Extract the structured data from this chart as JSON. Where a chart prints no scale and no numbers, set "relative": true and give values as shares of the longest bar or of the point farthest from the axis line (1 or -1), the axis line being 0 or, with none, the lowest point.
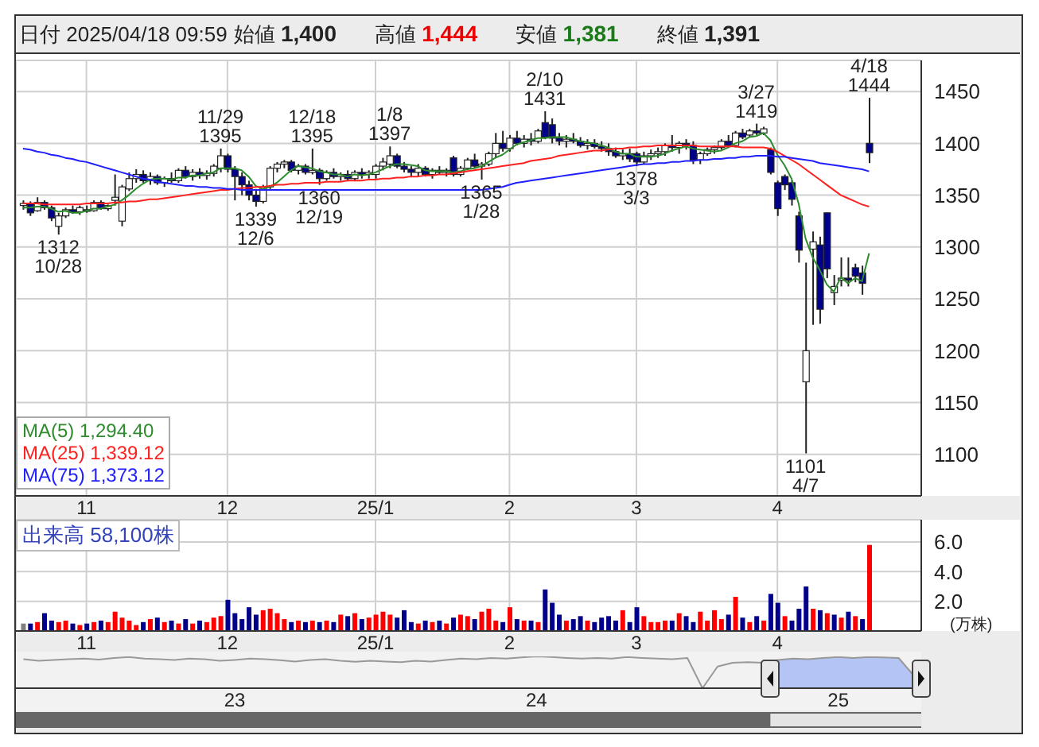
{
  "chart_data": [
    {
      "type": "candlestick",
      "title": "日付 2025/04/18 09:59",
      "grid": true,
      "colors": [
        "#ffffff",
        "#00008b",
        "#ffffff",
        "#00008b",
        "#00008b",
        "#ffffff",
        "#ffffff",
        "#00008b",
        "#ffffff",
        "#00008b",
        "#ffffff",
        "#00008b",
        "#ffffff",
        "#ffffff",
        "#ffffff",
        "#ffffff",
        "#ffffff",
        "#00008b",
        "#ffffff",
        "#00008b",
        "#ffffff",
        "#00008b",
        "#ffffff",
        "#00008b",
        "#ffffff",
        "#00008b",
        "#ffffff",
        "#ffffff",
        "#ffffff",
        "#00008b",
        "#00008b",
        "#00008b",
        "#00008b",
        "#00008b",
        "#ffffff",
        "#ffffff",
        "#ffffff",
        "#ffffff",
        "#00008b",
        "#ffffff",
        "#00008b",
        "#ffffff",
        "#00008b",
        "#ffffff",
        "#00008b",
        "#ffffff",
        "#00008b",
        "#ffffff",
        "#00008b",
        "#ffffff",
        "#ffffff",
        "#ffffff",
        "#ffffff",
        "#00008b",
        "#00008b",
        "#00008b",
        "#ffffff",
        "#00008b",
        "#ffffff",
        "#00008b",
        "#ffffff",
        "#00008b",
        "#ffffff",
        "#ffffff",
        "#00008b",
        "#ffffff",
        "#ffffff",
        "#ffffff",
        "#00008b",
        "#ffffff",
        "#00008b",
        "#ffffff",
        "#00008b",
        "#ffffff",
        "#00008b",
        "#00008b",
        "#00008b",
        "#ffffff",
        "#00008b",
        "#00008b",
        "#ffffff",
        "#00008b",
        "#00008b",
        "#00008b",
        "#00008b",
        "#ffffff",
        "#00008b",
        "#00008b",
        "#ffffff",
        "#ffffff",
        "#ffffff",
        "#ffffff",
        "#00008b",
        "#ffffff",
        "#00008b",
        "#00008b",
        "#ffffff",
        "#ffffff",
        "#ffffff",
        "#ffffff",
        "#00008b",
        "#ffffff",
        "#00008b",
        "#ffffff",
        "#00008b",
        "#ffffff",
        "#00008b",
        "#00008b",
        "#00008b",
        "#00008b",
        "#00008b",
        "#ffffff",
        "#ffffff",
        "#00008b",
        "#00008b",
        "#ffffff",
        "#ffffff",
        "#00008b",
        "#00008b",
        "#00008b",
        "#00008b"
      ],
      "legend": "bottom left",
      "ylim": [
        1060,
        1480
      ],
      "yticks": [
        1100,
        1150,
        1200,
        1250,
        1300,
        1350,
        1400,
        1450
      ],
      "annotations": [
        "始値 1,400",
        "高値 1,444",
        "安値 1,381",
        "終値 1,391",
        {
          "text": "1312\n10/28",
          "y": 1312
        },
        {
          "text": "11/29\n1395",
          "y": 1395
        },
        {
          "text": "1339\n12/6",
          "y": 1339
        },
        {
          "text": "12/18\n1395",
          "y": 1395
        },
        {
          "text": "1360\n12/19",
          "y": 1360
        },
        {
          "text": "1/8\n1397",
          "y": 1397
        },
        {
          "text": "1365\n1/28",
          "y": 1365
        },
        {
          "text": "2/10\n1431",
          "y": 1431
        },
        {
          "text": "1378\n3/3",
          "y": 1378
        },
        {
          "text": "3/27\n1419",
          "y": 1419
        },
        {
          "text": "1101\n4/7",
          "y": 1101
        },
        {
          "text": "4/18\n1444",
          "y": 1444
        }
      ],
      "categories": [
        null,
        null,
        null,
        null,
        null,
        null,
        null,
        null,
        null,
        "11",
        null,
        null,
        null,
        null,
        null,
        null,
        null,
        null,
        null,
        null,
        null,
        null,
        null,
        null,
        null,
        null,
        null,
        null,
        null,
        "12",
        null,
        null,
        null,
        null,
        null,
        null,
        null,
        null,
        null,
        null,
        null,
        null,
        null,
        null,
        null,
        null,
        null,
        null,
        null,
        null,
        "25/1",
        null,
        null,
        null,
        null,
        null,
        null,
        null,
        null,
        null,
        null,
        null,
        null,
        null,
        null,
        null,
        null,
        null,
        null,
        "2",
        null,
        null,
        null,
        null,
        null,
        null,
        null,
        null,
        null,
        null,
        null,
        null,
        null,
        null,
        null,
        null,
        null,
        "3",
        null,
        null,
        null,
        null,
        null,
        null,
        null,
        null,
        null,
        null,
        null,
        null,
        null,
        null,
        null,
        null,
        null,
        null,
        null,
        "4",
        null,
        null,
        null,
        null,
        null,
        null,
        null,
        null,
        null,
        null,
        null,
        null,
        null
      ],
      "ohlc": [
        [
          1340,
          1345,
          1336,
          1342
        ],
        [
          1342,
          1344,
          1330,
          1333
        ],
        [
          1335,
          1348,
          1334,
          1343
        ],
        [
          1343,
          1345,
          1336,
          1338
        ],
        [
          1338,
          1340,
          1325,
          1328
        ],
        [
          1320,
          1333,
          1312,
          1330
        ],
        [
          1330,
          1338,
          1328,
          1336
        ],
        [
          1336,
          1340,
          1332,
          1334
        ],
        [
          1334,
          1340,
          1331,
          1338
        ],
        [
          1336,
          1340,
          1333,
          1335
        ],
        [
          1335,
          1345,
          1334,
          1343
        ],
        [
          1343,
          1345,
          1336,
          1337
        ],
        [
          1337,
          1341,
          1335,
          1340
        ],
        [
          1345,
          1370,
          1340,
          1348
        ],
        [
          1325,
          1360,
          1320,
          1358
        ],
        [
          1356,
          1372,
          1354,
          1366
        ],
        [
          1366,
          1375,
          1362,
          1370
        ],
        [
          1370,
          1374,
          1362,
          1364
        ],
        [
          1364,
          1372,
          1360,
          1368
        ],
        [
          1368,
          1370,
          1360,
          1362
        ],
        [
          1362,
          1368,
          1358,
          1366
        ],
        [
          1366,
          1372,
          1362,
          1364
        ],
        [
          1364,
          1376,
          1362,
          1374
        ],
        [
          1374,
          1378,
          1366,
          1368
        ],
        [
          1368,
          1375,
          1364,
          1372
        ],
        [
          1372,
          1376,
          1366,
          1369
        ],
        [
          1369,
          1374,
          1365,
          1371
        ],
        [
          1371,
          1380,
          1368,
          1378
        ],
        [
          1376,
          1395,
          1372,
          1388
        ],
        [
          1388,
          1390,
          1372,
          1375
        ],
        [
          1375,
          1378,
          1345,
          1368
        ],
        [
          1368,
          1372,
          1350,
          1360
        ],
        [
          1360,
          1364,
          1345,
          1350
        ],
        [
          1350,
          1356,
          1339,
          1344
        ],
        [
          1344,
          1360,
          1342,
          1358
        ],
        [
          1358,
          1378,
          1356,
          1376
        ],
        [
          1376,
          1382,
          1372,
          1380
        ],
        [
          1380,
          1384,
          1376,
          1382
        ],
        [
          1382,
          1384,
          1372,
          1374
        ],
        [
          1374,
          1380,
          1370,
          1378
        ],
        [
          1378,
          1380,
          1370,
          1372
        ],
        [
          1372,
          1395,
          1370,
          1374
        ],
        [
          1374,
          1376,
          1360,
          1366
        ],
        [
          1366,
          1374,
          1364,
          1372
        ],
        [
          1372,
          1376,
          1366,
          1368
        ],
        [
          1368,
          1372,
          1364,
          1370
        ],
        [
          1370,
          1374,
          1364,
          1366
        ],
        [
          1366,
          1374,
          1364,
          1372
        ],
        [
          1372,
          1376,
          1366,
          1370
        ],
        [
          1370,
          1374,
          1366,
          1372
        ],
        [
          1370,
          1380,
          1366,
          1378
        ],
        [
          1378,
          1386,
          1374,
          1382
        ],
        [
          1380,
          1397,
          1376,
          1388
        ],
        [
          1388,
          1390,
          1376,
          1378
        ],
        [
          1378,
          1382,
          1372,
          1375
        ],
        [
          1375,
          1378,
          1368,
          1372
        ],
        [
          1372,
          1380,
          1368,
          1376
        ],
        [
          1376,
          1378,
          1368,
          1370
        ],
        [
          1370,
          1376,
          1366,
          1374
        ],
        [
          1374,
          1378,
          1370,
          1372
        ],
        [
          1372,
          1376,
          1368,
          1374
        ],
        [
          1386,
          1388,
          1368,
          1370
        ],
        [
          1370,
          1378,
          1368,
          1376
        ],
        [
          1376,
          1386,
          1374,
          1384
        ],
        [
          1384,
          1390,
          1376,
          1378
        ],
        [
          1378,
          1382,
          1365,
          1380
        ],
        [
          1380,
          1392,
          1378,
          1390
        ],
        [
          1390,
          1410,
          1386,
          1400
        ],
        [
          1400,
          1412,
          1392,
          1395
        ],
        [
          1395,
          1408,
          1392,
          1405
        ],
        [
          1405,
          1412,
          1398,
          1400
        ],
        [
          1400,
          1408,
          1396,
          1404
        ],
        [
          1404,
          1410,
          1398,
          1402
        ],
        [
          1402,
          1414,
          1400,
          1412
        ],
        [
          1420,
          1431,
          1404,
          1406
        ],
        [
          1418,
          1424,
          1400,
          1405
        ],
        [
          1405,
          1410,
          1398,
          1402
        ],
        [
          1402,
          1408,
          1396,
          1404
        ],
        [
          1404,
          1410,
          1400,
          1402
        ],
        [
          1402,
          1406,
          1396,
          1398
        ],
        [
          1398,
          1404,
          1394,
          1400
        ],
        [
          1400,
          1404,
          1395,
          1397
        ],
        [
          1397,
          1402,
          1392,
          1395
        ],
        [
          1395,
          1400,
          1388,
          1392
        ],
        [
          1392,
          1396,
          1386,
          1388
        ],
        [
          1388,
          1394,
          1384,
          1390
        ],
        [
          1390,
          1395,
          1382,
          1385
        ],
        [
          1390,
          1392,
          1378,
          1382
        ],
        [
          1382,
          1392,
          1380,
          1388
        ],
        [
          1388,
          1394,
          1384,
          1390
        ],
        [
          1390,
          1396,
          1386,
          1392
        ],
        [
          1392,
          1400,
          1388,
          1398
        ],
        [
          1398,
          1408,
          1392,
          1396
        ],
        [
          1396,
          1402,
          1390,
          1400
        ],
        [
          1400,
          1404,
          1394,
          1398
        ],
        [
          1398,
          1402,
          1380,
          1384
        ],
        [
          1384,
          1392,
          1380,
          1390
        ],
        [
          1390,
          1396,
          1388,
          1394
        ],
        [
          1394,
          1398,
          1390,
          1396
        ],
        [
          1396,
          1404,
          1394,
          1402
        ],
        [
          1402,
          1408,
          1396,
          1398
        ],
        [
          1398,
          1412,
          1396,
          1410
        ],
        [
          1410,
          1414,
          1404,
          1406
        ],
        [
          1408,
          1414,
          1406,
          1412
        ],
        [
          1412,
          1419,
          1408,
          1410
        ],
        [
          1410,
          1416,
          1408,
          1414
        ],
        [
          1394,
          1396,
          1370,
          1372
        ],
        [
          1362,
          1364,
          1330,
          1337
        ],
        [
          1368,
          1370,
          1355,
          1360
        ],
        [
          1362,
          1364,
          1340,
          1346
        ],
        [
          1330,
          1334,
          1285,
          1297
        ],
        [
          1170,
          1285,
          1101,
          1200
        ],
        [
          1298,
          1315,
          1225,
          1305
        ],
        [
          1302,
          1310,
          1226,
          1240
        ],
        [
          1333,
          1333,
          1270,
          1279
        ],
        [
          1256,
          1273,
          1244,
          1262
        ],
        [
          1268,
          1290,
          1262,
          1270
        ],
        [
          1270,
          1290,
          1262,
          1268
        ],
        [
          1280,
          1284,
          1266,
          1272
        ],
        [
          1275,
          1282,
          1254,
          1265
        ],
        [
          1400,
          1444,
          1381,
          1391
        ]
      ],
      "series": [
        {
          "name": "MA(5) 1,294.40",
          "type": "line",
          "color": "#2e8b2e",
          "values": [
            1338,
            1338,
            1339,
            1339,
            1337,
            1334,
            1335,
            1333,
            1333,
            1335,
            1337,
            1337,
            1339,
            1341,
            1345,
            1350,
            1356,
            1361,
            1365,
            1366,
            1366,
            1365,
            1367,
            1367,
            1369,
            1369,
            1371,
            1372,
            1376,
            1376,
            1376,
            1374,
            1368,
            1359,
            1356,
            1358,
            1362,
            1368,
            1374,
            1378,
            1377,
            1376,
            1373,
            1372,
            1370,
            1370,
            1368,
            1370,
            1369,
            1370,
            1372,
            1375,
            1378,
            1380,
            1380,
            1379,
            1378,
            1374,
            1373,
            1373,
            1373,
            1372,
            1373,
            1375,
            1376,
            1378,
            1382,
            1386,
            1389,
            1394,
            1399,
            1401,
            1403,
            1405,
            1405,
            1406,
            1406,
            1406,
            1404,
            1402,
            1401,
            1400,
            1398,
            1396,
            1392,
            1390,
            1390,
            1387,
            1387,
            1387,
            1388,
            1390,
            1393,
            1395,
            1397,
            1395,
            1394,
            1393,
            1392,
            1393,
            1396,
            1400,
            1402,
            1406,
            1407,
            1410,
            1403,
            1389,
            1379,
            1366,
            1342,
            1308,
            1290,
            1278,
            1264,
            1257,
            1271,
            1265,
            1270,
            1267,
            1294
          ]
        },
        {
          "name": "MA(25) 1,339.12",
          "type": "line",
          "color": "#ff2020",
          "values": [
            1342,
            1342,
            1342,
            1341,
            1341,
            1341,
            1341,
            1341,
            1341,
            1342,
            1342,
            1342,
            1342,
            1343,
            1343,
            1344,
            1344,
            1345,
            1346,
            1346,
            1347,
            1348,
            1349,
            1350,
            1351,
            1352,
            1353,
            1354,
            1355,
            1355,
            1356,
            1357,
            1357,
            1358,
            1358,
            1359,
            1360,
            1360,
            1361,
            1361,
            1362,
            1362,
            1362,
            1363,
            1363,
            1363,
            1364,
            1364,
            1364,
            1365,
            1365,
            1366,
            1366,
            1367,
            1367,
            1368,
            1368,
            1369,
            1369,
            1370,
            1370,
            1371,
            1372,
            1373,
            1374,
            1375,
            1376,
            1377,
            1378,
            1379,
            1380,
            1381,
            1383,
            1384,
            1385,
            1386,
            1388,
            1389,
            1390,
            1391,
            1392,
            1393,
            1393,
            1394,
            1395,
            1395,
            1396,
            1396,
            1397,
            1397,
            1398,
            1398,
            1398,
            1398,
            1398,
            1398,
            1397,
            1397,
            1397,
            1397,
            1397,
            1397,
            1396,
            1396,
            1396,
            1396,
            1395,
            1392,
            1388,
            1384,
            1380,
            1375,
            1370,
            1365,
            1360,
            1355,
            1350,
            1347,
            1344,
            1341,
            1339
          ]
        },
        {
          "name": "MA(75) 1,373.12",
          "type": "line",
          "color": "#2020ff",
          "values": [
            1395,
            1394,
            1392,
            1391,
            1389,
            1388,
            1386,
            1385,
            1383,
            1382,
            1380,
            1378,
            1376,
            1374,
            1372,
            1370,
            1368,
            1366,
            1365,
            1363,
            1362,
            1361,
            1360,
            1359,
            1359,
            1358,
            1358,
            1357,
            1357,
            1356,
            1356,
            1355,
            1355,
            1355,
            1355,
            1355,
            1355,
            1355,
            1355,
            1355,
            1355,
            1355,
            1355,
            1355,
            1355,
            1355,
            1355,
            1355,
            1355,
            1355,
            1355,
            1355,
            1355,
            1355,
            1355,
            1355,
            1355,
            1355,
            1355,
            1355,
            1355,
            1355,
            1355,
            1355,
            1355,
            1355,
            1356,
            1357,
            1358,
            1360,
            1362,
            1363,
            1364,
            1365,
            1366,
            1367,
            1368,
            1369,
            1370,
            1371,
            1372,
            1373,
            1374,
            1375,
            1376,
            1377,
            1378,
            1379,
            1380,
            1380,
            1381,
            1381,
            1382,
            1382,
            1383,
            1383,
            1384,
            1384,
            1385,
            1385,
            1386,
            1386,
            1387,
            1387,
            1388,
            1388,
            1388,
            1387,
            1387,
            1386,
            1385,
            1384,
            1383,
            1381,
            1380,
            1379,
            1378,
            1377,
            1376,
            1375,
            1373
          ]
        }
      ]
    },
    {
      "type": "bar",
      "annotations": [
        "出来高 58,100株"
      ],
      "ylabel": "(万株)",
      "grid": true,
      "ylim": [
        0,
        7.5
      ],
      "yticks": [
        {
          "value": 2,
          "label": "2.0"
        },
        {
          "value": 4,
          "label": "4.0"
        },
        {
          "value": 6,
          "label": "6.0"
        }
      ],
      "categories": [
        null,
        null,
        null,
        null,
        null,
        null,
        null,
        null,
        null,
        "11",
        null,
        null,
        null,
        null,
        null,
        null,
        null,
        null,
        null,
        null,
        null,
        null,
        null,
        null,
        null,
        null,
        null,
        null,
        null,
        "12",
        null,
        null,
        null,
        null,
        null,
        null,
        null,
        null,
        null,
        null,
        null,
        null,
        null,
        null,
        null,
        null,
        null,
        null,
        null,
        null,
        "25/1",
        null,
        null,
        null,
        null,
        null,
        null,
        null,
        null,
        null,
        null,
        null,
        null,
        null,
        null,
        null,
        null,
        null,
        null,
        "2",
        null,
        null,
        null,
        null,
        null,
        null,
        null,
        null,
        null,
        null,
        null,
        null,
        null,
        null,
        null,
        null,
        null,
        "3",
        null,
        null,
        null,
        null,
        null,
        null,
        null,
        null,
        null,
        null,
        null,
        null,
        null,
        null,
        null,
        null,
        null,
        null,
        null,
        "4",
        null,
        null,
        null,
        null,
        null,
        null,
        null,
        null,
        null,
        null,
        null,
        null,
        null
      ],
      "values": [
        0.5,
        0.5,
        0.6,
        1.2,
        0.7,
        0.6,
        0.7,
        0.5,
        0.4,
        0.5,
        0.6,
        0.7,
        0.6,
        1.3,
        0.9,
        0.7,
        0.4,
        0.6,
        0.8,
        0.9,
        0.6,
        0.7,
        0.5,
        0.8,
        0.5,
        0.7,
        0.6,
        0.9,
        1.0,
        2.1,
        1.2,
        0.8,
        1.6,
        1.1,
        1.4,
        1.5,
        1.2,
        0.8,
        0.6,
        0.7,
        0.6,
        0.7,
        0.6,
        0.7,
        0.6,
        1.1,
        1.0,
        1.2,
        0.8,
        0.9,
        1.1,
        1.3,
        1.1,
        0.9,
        1.4,
        0.6,
        0.5,
        0.7,
        0.6,
        0.7,
        0.5,
        0.9,
        1.1,
        1.0,
        0.8,
        1.3,
        1.5,
        0.7,
        0.6,
        1.6,
        0.8,
        0.7,
        0.7,
        0.6,
        2.8,
        1.9,
        1.1,
        0.7,
        0.8,
        1.0,
        0.7,
        0.6,
        0.9,
        1.0,
        0.7,
        1.4,
        0.6,
        1.6,
        1.0,
        0.6,
        0.6,
        0.7,
        0.7,
        1.2,
        1.0,
        0.6,
        1.3,
        0.7,
        1.4,
        0.8,
        1.1,
        2.3,
        0.9,
        0.6,
        1.0,
        0.7,
        2.5,
        1.9,
        1.0,
        0.7,
        1.5,
        3.0,
        1.5,
        1.4,
        1.2,
        1.1,
        0.9,
        1.3,
        1.0,
        0.8,
        5.8
      ],
      "colors": [
        "#808080",
        "#00008b",
        "#ff0000",
        "#00008b",
        "#00008b",
        "#ff0000",
        "#ff0000",
        "#00008b",
        "#ff0000",
        "#00008b",
        "#ff0000",
        "#00008b",
        "#ff0000",
        "#ff0000",
        "#ff0000",
        "#ff0000",
        "#ff0000",
        "#00008b",
        "#ff0000",
        "#00008b",
        "#ff0000",
        "#00008b",
        "#ff0000",
        "#00008b",
        "#ff0000",
        "#00008b",
        "#ff0000",
        "#ff0000",
        "#ff0000",
        "#00008b",
        "#00008b",
        "#00008b",
        "#00008b",
        "#00008b",
        "#ff0000",
        "#ff0000",
        "#ff0000",
        "#ff0000",
        "#00008b",
        "#ff0000",
        "#00008b",
        "#ff0000",
        "#00008b",
        "#ff0000",
        "#00008b",
        "#ff0000",
        "#00008b",
        "#ff0000",
        "#00008b",
        "#ff0000",
        "#ff0000",
        "#ff0000",
        "#ff0000",
        "#00008b",
        "#00008b",
        "#00008b",
        "#ff0000",
        "#00008b",
        "#ff0000",
        "#00008b",
        "#ff0000",
        "#00008b",
        "#ff0000",
        "#ff0000",
        "#00008b",
        "#ff0000",
        "#ff0000",
        "#ff0000",
        "#00008b",
        "#ff0000",
        "#00008b",
        "#ff0000",
        "#00008b",
        "#ff0000",
        "#00008b",
        "#00008b",
        "#00008b",
        "#ff0000",
        "#00008b",
        "#00008b",
        "#ff0000",
        "#00008b",
        "#00008b",
        "#00008b",
        "#00008b",
        "#ff0000",
        "#00008b",
        "#00008b",
        "#ff0000",
        "#ff0000",
        "#ff0000",
        "#ff0000",
        "#00008b",
        "#ff0000",
        "#00008b",
        "#00008b",
        "#ff0000",
        "#ff0000",
        "#ff0000",
        "#ff0000",
        "#00008b",
        "#ff0000",
        "#00008b",
        "#ff0000",
        "#00008b",
        "#ff0000",
        "#00008b",
        "#00008b",
        "#ff0000",
        "#00008b",
        "#00008b",
        "#00008b",
        "#ff0000",
        "#00008b",
        "#ff0000",
        "#00008b",
        "#ff0000",
        "#00008b",
        "#ff0000",
        "#00008b",
        "#ff0000"
      ]
    },
    {
      "type": "line",
      "relative": true,
      "categories": [
        null,
        null,
        null,
        null,
        null,
        null,
        null,
        null,
        null,
        null,
        null,
        null,
        null,
        null,
        "23",
        null,
        null,
        null,
        null,
        null,
        null,
        null,
        null,
        null,
        null,
        null,
        null,
        null,
        null,
        null,
        null,
        null,
        null,
        null,
        "24",
        null,
        null,
        null,
        null,
        null,
        null,
        null,
        null,
        null,
        null,
        null,
        null,
        null,
        null,
        null,
        null,
        null,
        null,
        null,
        "25",
        null,
        null,
        null,
        null,
        null
      ],
      "series": [
        {
          "type": "area",
          "color": "#b4c4f4",
          "values": [
            null,
            null,
            null,
            null,
            null,
            null,
            null,
            null,
            null,
            null,
            null,
            null,
            null,
            null,
            null,
            null,
            null,
            null,
            null,
            null,
            null,
            null,
            null,
            null,
            null,
            null,
            null,
            null,
            null,
            null,
            null,
            null,
            null,
            null,
            null,
            null,
            null,
            null,
            null,
            null,
            null,
            null,
            null,
            null,
            null,
            null,
            null,
            null,
            null,
            null,
            0.89,
            0.93,
            0.91,
            0.95,
            0.98,
            0.95,
            0.98,
            0.97,
            0.95,
            0.4
          ]
        },
        {
          "type": "line",
          "color": "#999999",
          "values": [
            0.91,
            0.86,
            0.89,
            0.91,
            0.93,
            0.9,
            0.95,
            0.98,
            0.93,
            0.91,
            0.89,
            0.93,
            0.91,
            0.86,
            0.89,
            0.93,
            0.91,
            0.88,
            0.84,
            0.89,
            0.91,
            0.86,
            0.83,
            0.86,
            0.84,
            0.82,
            0.86,
            0.84,
            0.89,
            0.93,
            0.91,
            0.95,
            0.93,
            0.97,
            1,
            0.98,
            0.95,
            0.93,
            0.95,
            0.93,
            0.98,
            0.95,
            0.93,
            0.91,
            0.95,
            0,
            0.68,
            0.8,
            0.82,
            0.8,
            0.89,
            0.93,
            0.91,
            0.95,
            0.98,
            0.95,
            0.98,
            0.97,
            0.95,
            0.4
          ]
        }
      ]
    }
  ]
}
